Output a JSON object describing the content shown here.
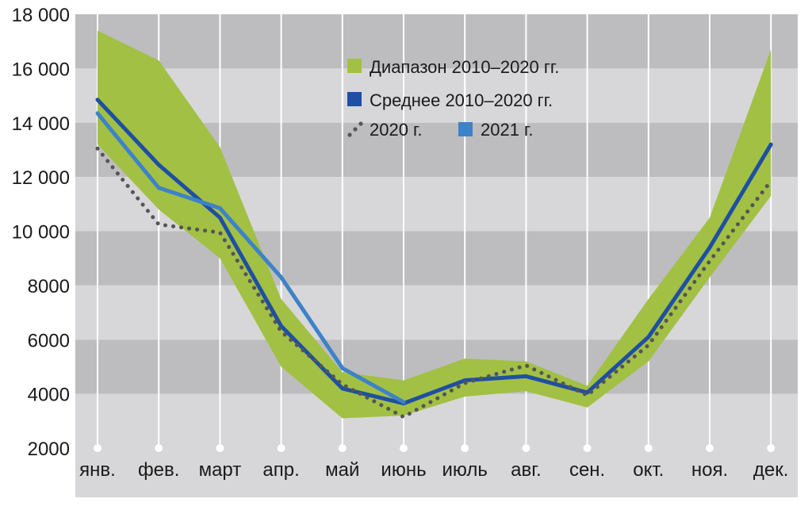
{
  "chart_data": {
    "type": "line",
    "categories": [
      "янв.",
      "фев.",
      "март",
      "апр.",
      "май",
      "июнь",
      "июль",
      "авг.",
      "сен.",
      "окт.",
      "ноя.",
      "дек."
    ],
    "yticks": [
      "2000",
      "4000",
      "6000",
      "8000",
      "10 000",
      "12 000",
      "14 000",
      "16 000",
      "18 000"
    ],
    "ylim": [
      2000,
      18000
    ],
    "grid": "horizontal bands",
    "legend_position": "top-center",
    "range_band": {
      "name": "Диапазон 2010–2020 гг.",
      "color": "#a2c044",
      "upper": [
        17400,
        16300,
        13100,
        7500,
        4800,
        4500,
        5300,
        5200,
        4300,
        7500,
        10500,
        16700
      ],
      "lower": [
        13200,
        10800,
        9000,
        5000,
        3100,
        3200,
        3900,
        4100,
        3500,
        5200,
        8300,
        11300
      ]
    },
    "series": [
      {
        "name": "Среднее 2010–2020 гг.",
        "style": "solid",
        "color": "#1f4fa2",
        "values": [
          14850,
          12450,
          10500,
          6500,
          4200,
          3650,
          4500,
          4650,
          4050,
          6100,
          9400,
          13200
        ]
      },
      {
        "name": "2020 г.",
        "style": "dotted",
        "color": "#555555",
        "values": [
          13050,
          10250,
          9950,
          6300,
          4350,
          3150,
          4400,
          5050,
          3950,
          5800,
          8900,
          11850
        ]
      },
      {
        "name": "2021 г.",
        "style": "solid",
        "color": "#3e82c8",
        "values": [
          14350,
          11600,
          10850,
          8300,
          4950,
          3700,
          null,
          null,
          null,
          null,
          null,
          null
        ]
      }
    ]
  }
}
